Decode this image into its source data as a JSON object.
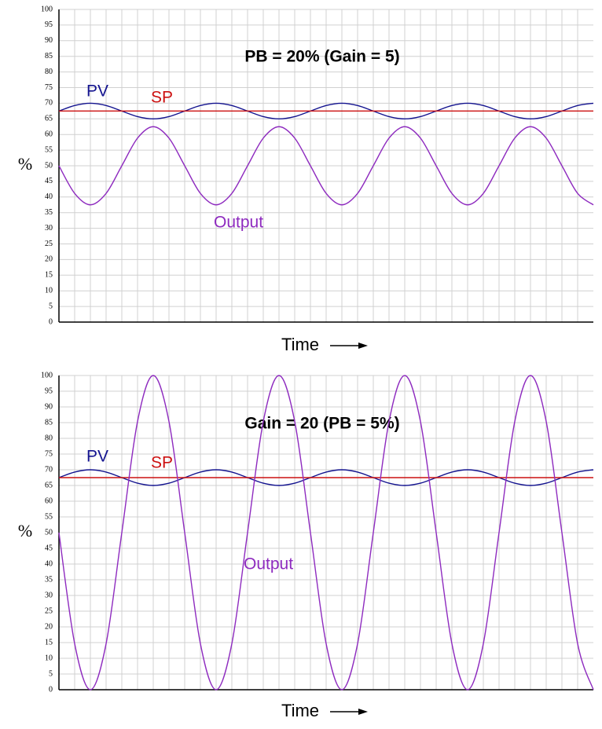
{
  "chart_data": [
    {
      "type": "line",
      "title": "PB = 20% (Gain = 5)",
      "y_label": "%",
      "x_label": "Time",
      "ylim": [
        0,
        100
      ],
      "yticks": [
        0,
        5,
        10,
        15,
        20,
        25,
        30,
        35,
        40,
        45,
        50,
        55,
        60,
        65,
        70,
        75,
        80,
        85,
        90,
        95,
        100
      ],
      "grid": true,
      "series": [
        {
          "name": "PV",
          "color": "#13138f",
          "values": [
            67.5,
            69.27,
            70,
            69.27,
            67.5,
            65.73,
            65,
            65.73,
            67.5,
            69.27,
            70,
            69.27,
            67.5,
            65.73,
            65,
            65.73,
            67.5,
            69.27,
            70,
            69.27,
            67.5,
            65.73,
            65,
            65.73,
            67.5,
            69.27,
            70,
            69.27,
            67.5,
            65.73,
            65,
            65.73,
            67.5,
            69.27,
            70
          ]
        },
        {
          "name": "SP",
          "color": "#cc1010",
          "values": [
            67.5,
            67.5,
            67.5,
            67.5,
            67.5,
            67.5,
            67.5,
            67.5,
            67.5,
            67.5,
            67.5,
            67.5,
            67.5,
            67.5,
            67.5,
            67.5,
            67.5,
            67.5,
            67.5,
            67.5,
            67.5,
            67.5,
            67.5,
            67.5,
            67.5,
            67.5,
            67.5,
            67.5,
            67.5,
            67.5,
            67.5,
            67.5,
            67.5,
            67.5,
            67.5
          ]
        },
        {
          "name": "Output",
          "color": "#8e2bbf",
          "values": [
            50,
            41.16,
            37.5,
            41.16,
            50,
            58.84,
            62.5,
            58.84,
            50,
            41.16,
            37.5,
            41.16,
            50,
            58.84,
            62.5,
            58.84,
            50,
            41.16,
            37.5,
            41.16,
            50,
            58.84,
            62.5,
            58.84,
            50,
            41.16,
            37.5,
            41.16,
            50,
            58.84,
            62.5,
            58.84,
            50,
            41.16,
            37.5
          ]
        }
      ]
    },
    {
      "type": "line",
      "title": "Gain = 20 (PB = 5%)",
      "y_label": "%",
      "x_label": "Time",
      "ylim": [
        0,
        100
      ],
      "yticks": [
        0,
        5,
        10,
        15,
        20,
        25,
        30,
        35,
        40,
        45,
        50,
        55,
        60,
        65,
        70,
        75,
        80,
        85,
        90,
        95,
        100
      ],
      "grid": true,
      "series": [
        {
          "name": "PV",
          "color": "#13138f",
          "values": [
            67.5,
            69.27,
            70,
            69.27,
            67.5,
            65.73,
            65,
            65.73,
            67.5,
            69.27,
            70,
            69.27,
            67.5,
            65.73,
            65,
            65.73,
            67.5,
            69.27,
            70,
            69.27,
            67.5,
            65.73,
            65,
            65.73,
            67.5,
            69.27,
            70,
            69.27,
            67.5,
            65.73,
            65,
            65.73,
            67.5,
            69.27,
            70
          ]
        },
        {
          "name": "SP",
          "color": "#cc1010",
          "values": [
            67.5,
            67.5,
            67.5,
            67.5,
            67.5,
            67.5,
            67.5,
            67.5,
            67.5,
            67.5,
            67.5,
            67.5,
            67.5,
            67.5,
            67.5,
            67.5,
            67.5,
            67.5,
            67.5,
            67.5,
            67.5,
            67.5,
            67.5,
            67.5,
            67.5,
            67.5,
            67.5,
            67.5,
            67.5,
            67.5,
            67.5,
            67.5,
            67.5,
            67.5,
            67.5
          ]
        },
        {
          "name": "Output",
          "color": "#8e2bbf",
          "values": [
            50,
            14.64,
            0,
            14.64,
            50,
            85.36,
            100,
            85.36,
            50,
            14.64,
            0,
            14.64,
            50,
            85.36,
            100,
            85.36,
            50,
            14.64,
            0,
            14.64,
            50,
            85.36,
            100,
            85.36,
            50,
            14.64,
            0,
            14.64,
            50,
            85.36,
            100,
            85.36,
            50,
            14.64,
            0
          ]
        }
      ]
    }
  ]
}
